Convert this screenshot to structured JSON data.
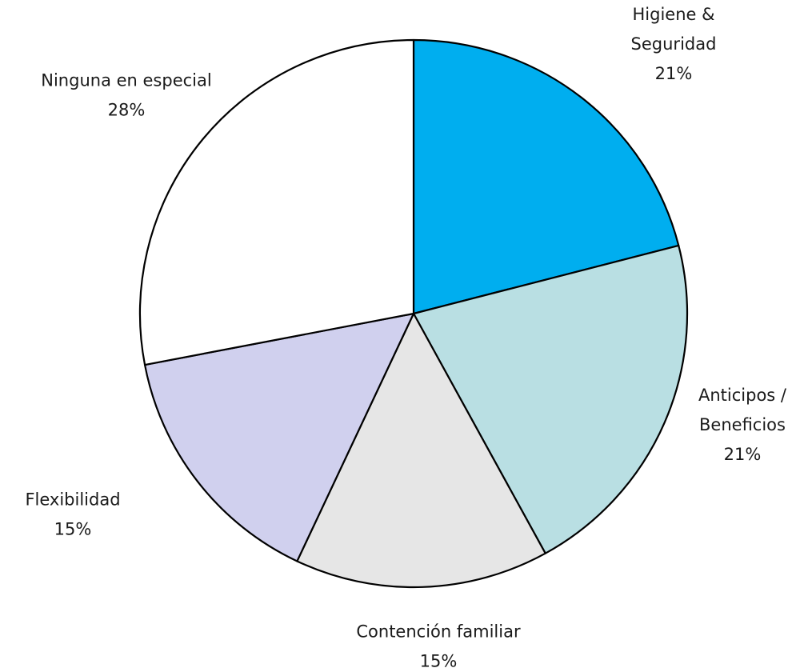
{
  "chart_data": {
    "type": "pie",
    "title": "",
    "start": "12 o'clock",
    "direction": "clockwise",
    "slices": [
      {
        "label_lines": [
          "Higiene &",
          "Seguridad"
        ],
        "pct_label": "21%",
        "value": 21,
        "color": "#00AEEF"
      },
      {
        "label_lines": [
          "Anticipos /",
          "Beneficios"
        ],
        "pct_label": "21%",
        "value": 21,
        "color": "#B9DFE3"
      },
      {
        "label_lines": [
          "Contención familiar"
        ],
        "pct_label": "15%",
        "value": 15,
        "color": "#E6E6E6"
      },
      {
        "label_lines": [
          "Flexibilidad"
        ],
        "pct_label": "15%",
        "value": 15,
        "color": "#D0D0EE"
      },
      {
        "label_lines": [
          "Ninguna en especial"
        ],
        "pct_label": "28%",
        "value": 28,
        "color": "#FFFFFF"
      }
    ]
  }
}
